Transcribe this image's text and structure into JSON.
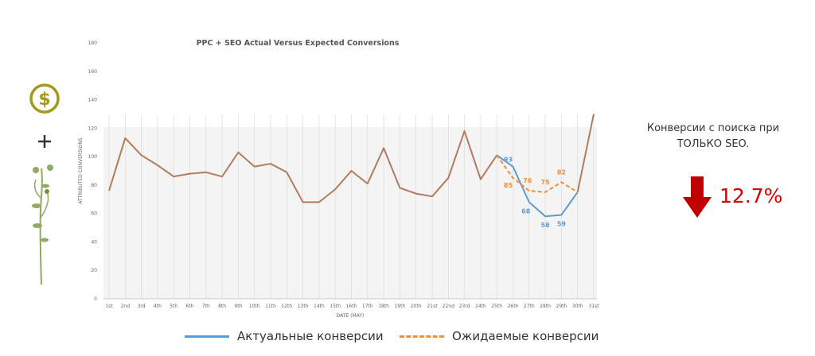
{
  "chart_data": {
    "type": "line",
    "title": "PPC + SEO Actual Versus Expected Conversions",
    "xlabel": "DATE (MAY)",
    "ylabel": "ATTRIBUTED CONVERSIONS",
    "ylim": [
      0,
      180
    ],
    "yticks": [
      0,
      20,
      40,
      60,
      80,
      100,
      120,
      140,
      160,
      180
    ],
    "grid": "vertical",
    "categories": [
      "1st",
      "2nd",
      "3rd",
      "4th",
      "5th",
      "6th",
      "7th",
      "8th",
      "9th",
      "10th",
      "11th",
      "12th",
      "13th",
      "14th",
      "15th",
      "16th",
      "17th",
      "18th",
      "19th",
      "20th",
      "21st",
      "22nd",
      "23rd",
      "24th",
      "25th",
      "26th",
      "27th",
      "28th",
      "29th",
      "30th",
      "31st"
    ],
    "series": [
      {
        "name": "",
        "color": "#b07c5e",
        "values": [
          76,
          113,
          101,
          94,
          86,
          88,
          89,
          86,
          103,
          93,
          95,
          89,
          68,
          68,
          77,
          90,
          81,
          106,
          78,
          74,
          72,
          85,
          118,
          84,
          101,
          null,
          null,
          null,
          null,
          75,
          130
        ]
      },
      {
        "name": "Актуальные конверсии",
        "color": "#5b9bd5",
        "values": [
          null,
          null,
          null,
          null,
          null,
          null,
          null,
          null,
          null,
          null,
          null,
          null,
          null,
          null,
          null,
          null,
          null,
          null,
          null,
          null,
          null,
          null,
          null,
          null,
          101,
          93,
          68,
          58,
          59,
          75,
          null
        ],
        "labels": {
          "25": "93",
          "26": "68",
          "27": "58",
          "28": "59"
        }
      },
      {
        "name": "Ожидаемые конверсии",
        "color": "#ed8f3b",
        "dashed": true,
        "values": [
          null,
          null,
          null,
          null,
          null,
          null,
          null,
          null,
          null,
          null,
          null,
          null,
          null,
          null,
          null,
          null,
          null,
          null,
          null,
          null,
          null,
          null,
          null,
          null,
          101,
          85,
          76,
          75,
          82,
          75,
          null
        ],
        "labels": {
          "25": "85",
          "26": "76",
          "27": "75",
          "28": "82"
        }
      }
    ],
    "legend": "bottom"
  },
  "note": {
    "text": "Конверсии с поиска при ТОЛЬКО SEO.",
    "change": "12.7%",
    "change_color": "#d40000",
    "arrow": "arrow-down-icon"
  },
  "icons": {
    "money": "dollar-coin-icon",
    "plus": "plus-icon",
    "plant": "plant-icon",
    "accent": "#a39a1a"
  }
}
